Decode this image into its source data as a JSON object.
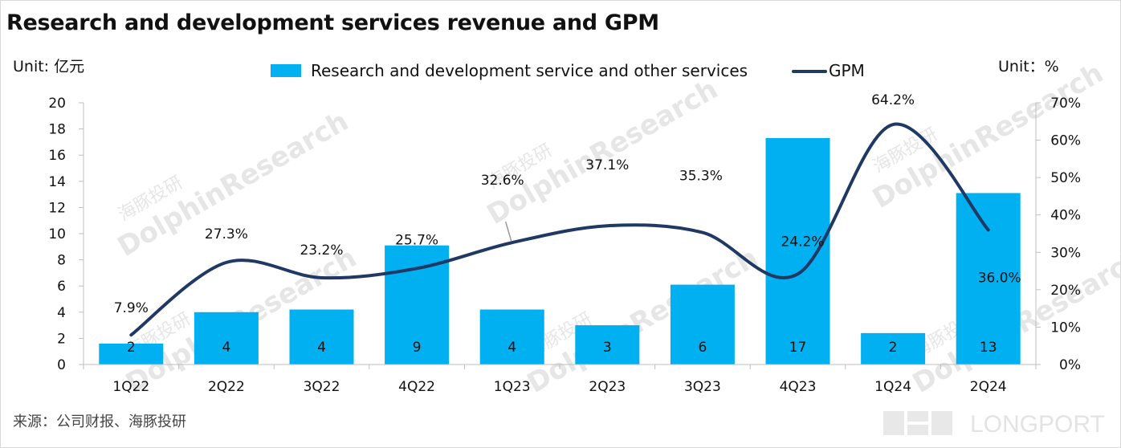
{
  "title": "Research and development services revenue and GPM",
  "unit_left": "Unit: 亿元",
  "unit_right": "Unit：%",
  "source": "来源：公司财报、海豚投研",
  "watermark": {
    "cn": "海豚投研",
    "en": "DolphinResearch"
  },
  "logo_text": "LONGPORT",
  "colors": {
    "bar": "#00b0f0",
    "line": "#1f3864",
    "axis": "#bfbfbf",
    "watermark": "#e6e6e6"
  },
  "legend": {
    "bar_label": "Research and development service and other services",
    "line_label": "GPM"
  },
  "chart_data": {
    "type": "bar",
    "categories": [
      "1Q22",
      "2Q22",
      "3Q22",
      "4Q22",
      "1Q23",
      "2Q23",
      "3Q23",
      "4Q23",
      "1Q24",
      "2Q24"
    ],
    "series": [
      {
        "name": "Research and development service and other services",
        "type": "bar",
        "axis": "left",
        "values": [
          1.6,
          4.0,
          4.2,
          9.1,
          4.2,
          3.0,
          6.1,
          17.3,
          2.4,
          13.1
        ],
        "data_labels": [
          "2",
          "4",
          "4",
          "9",
          "4",
          "3",
          "6",
          "17",
          "2",
          "13"
        ]
      },
      {
        "name": "GPM",
        "type": "line",
        "axis": "right",
        "values": [
          7.9,
          27.3,
          23.2,
          25.7,
          32.6,
          37.1,
          35.3,
          24.2,
          64.2,
          36.0
        ],
        "data_labels": [
          "7.9%",
          "27.3%",
          "23.2%",
          "25.7%",
          "32.6%",
          "37.1%",
          "35.3%",
          "24.2%",
          "64.2%",
          "36.0%"
        ]
      }
    ],
    "y_left": {
      "ylim": [
        0,
        20
      ],
      "ticks": [
        "0",
        "2",
        "4",
        "6",
        "8",
        "10",
        "12",
        "14",
        "16",
        "18",
        "20"
      ]
    },
    "y_right": {
      "ylim": [
        0,
        70
      ],
      "ticks": [
        "0%",
        "10%",
        "20%",
        "30%",
        "40%",
        "50%",
        "60%",
        "70%"
      ]
    },
    "grid": false,
    "legend_position": "top"
  }
}
